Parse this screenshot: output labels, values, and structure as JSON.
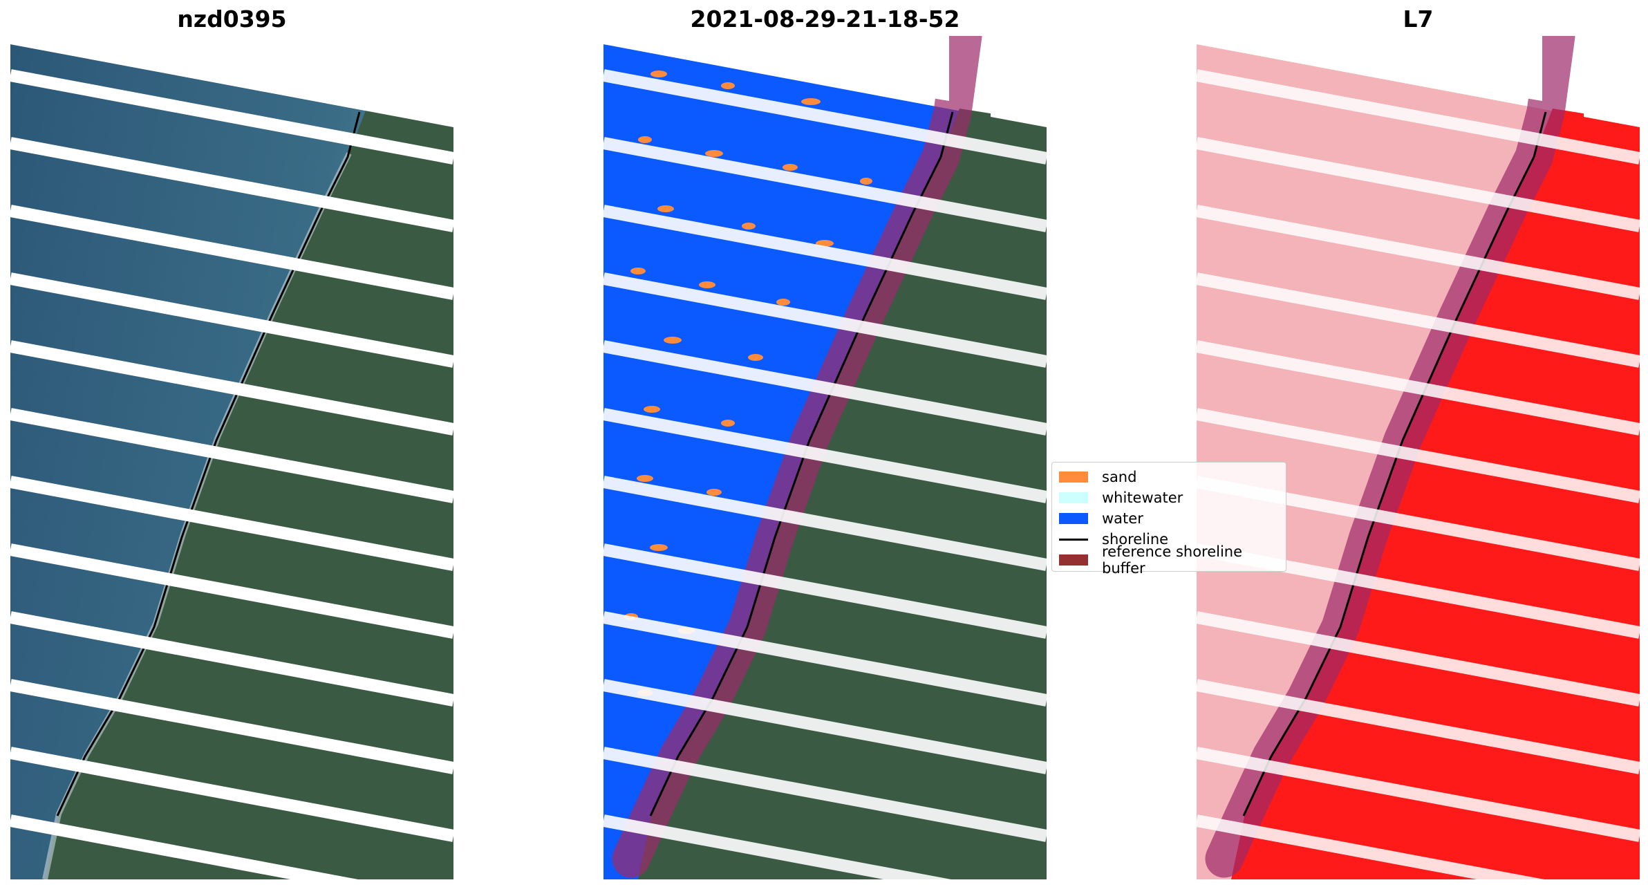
{
  "panels": [
    {
      "title": "nzd0395",
      "type": "rgb"
    },
    {
      "title": "2021-08-29-21-18-52",
      "type": "classified"
    },
    {
      "title": "L7",
      "type": "index"
    }
  ],
  "legend": {
    "items": [
      {
        "label": "sand",
        "color": "#ff8c3c"
      },
      {
        "label": "whitewater",
        "color": "#ccffff"
      },
      {
        "label": "water",
        "color": "#0a5aff"
      },
      {
        "label": "shoreline",
        "color": "#000000"
      },
      {
        "label": "reference shoreline buffer",
        "color": "#943030"
      }
    ]
  },
  "colors": {
    "ocean": "#2e5e7c",
    "land": "#3b5a44",
    "water_class": "#0a5aff",
    "sand_class": "#ff8c3c",
    "buffer": "#9c2a6a",
    "index_low": "#f4b3b8",
    "index_high": "#ff1a1a"
  }
}
